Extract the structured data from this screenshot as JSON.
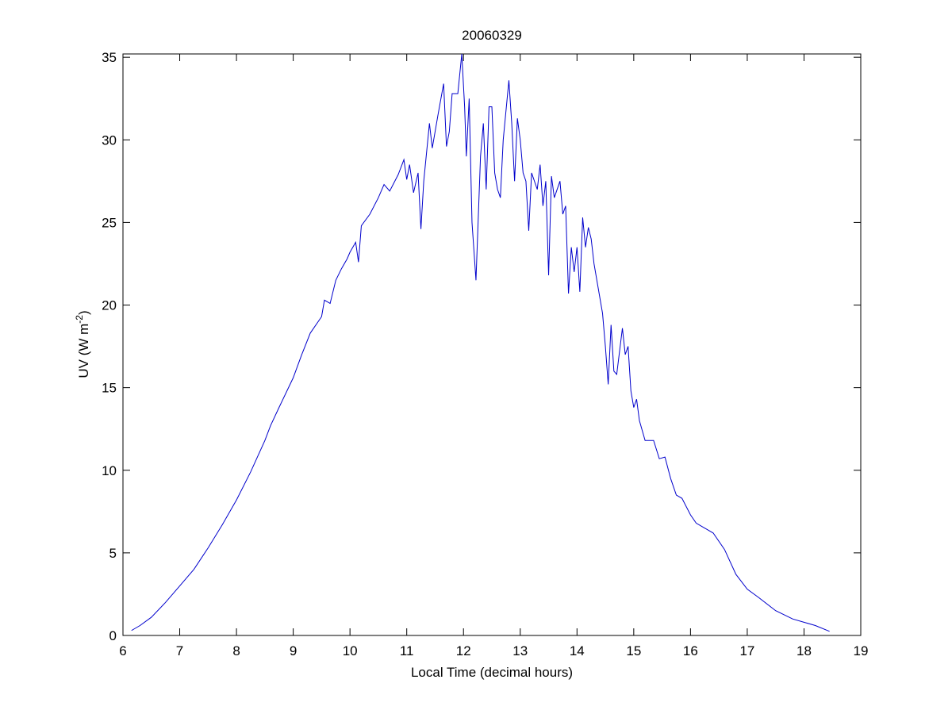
{
  "chart_data": {
    "type": "line",
    "title": "20060329",
    "xlabel": "Local Time (decimal hours)",
    "ylabel": {
      "text": "UV (W m",
      "superscript": "-2",
      "suffix": ")"
    },
    "xlim": [
      6,
      19
    ],
    "xticks": [
      6,
      7,
      8,
      9,
      10,
      11,
      12,
      13,
      14,
      15,
      16,
      17,
      18,
      19
    ],
    "ylim": [
      0,
      35.2
    ],
    "yticks": [
      0,
      5,
      10,
      15,
      20,
      25,
      30,
      35
    ],
    "grid": false,
    "series": [
      {
        "color": "#0000cc",
        "x": [
          6.15,
          6.3,
          6.5,
          6.75,
          7.0,
          7.25,
          7.5,
          7.75,
          8.0,
          8.25,
          8.5,
          8.6,
          8.75,
          9.0,
          9.15,
          9.3,
          9.5,
          9.55,
          9.65,
          9.75,
          9.85,
          9.95,
          10.0,
          10.1,
          10.15,
          10.2,
          10.35,
          10.5,
          10.6,
          10.7,
          10.85,
          10.95,
          11.0,
          11.05,
          11.12,
          11.2,
          11.25,
          11.3,
          11.4,
          11.45,
          11.55,
          11.65,
          11.7,
          11.75,
          11.8,
          11.9,
          11.97,
          12.02,
          12.05,
          12.1,
          12.15,
          12.22,
          12.3,
          12.35,
          12.4,
          12.45,
          12.5,
          12.55,
          12.6,
          12.65,
          12.7,
          12.8,
          12.85,
          12.9,
          12.95,
          13.0,
          13.05,
          13.1,
          13.15,
          13.2,
          13.3,
          13.35,
          13.4,
          13.45,
          13.5,
          13.55,
          13.6,
          13.7,
          13.75,
          13.8,
          13.85,
          13.9,
          13.95,
          14.0,
          14.05,
          14.1,
          14.15,
          14.2,
          14.25,
          14.3,
          14.35,
          14.4,
          14.45,
          14.5,
          14.55,
          14.6,
          14.65,
          14.7,
          14.8,
          14.85,
          14.9,
          14.95,
          15.0,
          15.05,
          15.1,
          15.2,
          15.35,
          15.45,
          15.55,
          15.65,
          15.75,
          15.85,
          16.0,
          16.1,
          16.25,
          16.4,
          16.6,
          16.8,
          17.0,
          17.2,
          17.5,
          17.8,
          18.0,
          18.2,
          18.45
        ],
        "values": [
          0.3,
          0.6,
          1.1,
          2.0,
          3.0,
          4.0,
          5.3,
          6.7,
          8.2,
          9.9,
          11.8,
          12.7,
          13.8,
          15.6,
          17.0,
          18.3,
          19.3,
          20.3,
          20.1,
          21.5,
          22.2,
          22.8,
          23.2,
          23.8,
          22.6,
          24.8,
          25.5,
          26.5,
          27.3,
          26.9,
          27.9,
          28.8,
          27.6,
          28.5,
          26.8,
          28.0,
          24.6,
          27.5,
          31.0,
          29.5,
          31.5,
          33.4,
          29.6,
          30.5,
          32.8,
          32.8,
          35.2,
          32.0,
          29.0,
          32.5,
          25.0,
          21.5,
          29.0,
          31.0,
          27.0,
          32.0,
          32.0,
          28.0,
          27.0,
          26.5,
          30.0,
          33.6,
          31.0,
          27.5,
          31.3,
          30.0,
          28.0,
          27.5,
          24.5,
          28.0,
          27.0,
          28.5,
          26.0,
          27.5,
          21.8,
          27.8,
          26.5,
          27.5,
          25.5,
          26.0,
          20.7,
          23.5,
          22.0,
          23.5,
          20.8,
          25.3,
          23.5,
          24.7,
          24.0,
          22.5,
          21.5,
          20.5,
          19.5,
          17.5,
          15.2,
          18.8,
          16.0,
          15.8,
          18.6,
          17.0,
          17.5,
          14.8,
          13.8,
          14.3,
          13.0,
          11.8,
          11.8,
          10.7,
          10.8,
          9.5,
          8.5,
          8.3,
          7.3,
          6.8,
          6.5,
          6.2,
          5.2,
          3.7,
          2.8,
          2.3,
          1.5,
          1.0,
          0.8,
          0.6,
          0.25
        ]
      }
    ]
  }
}
